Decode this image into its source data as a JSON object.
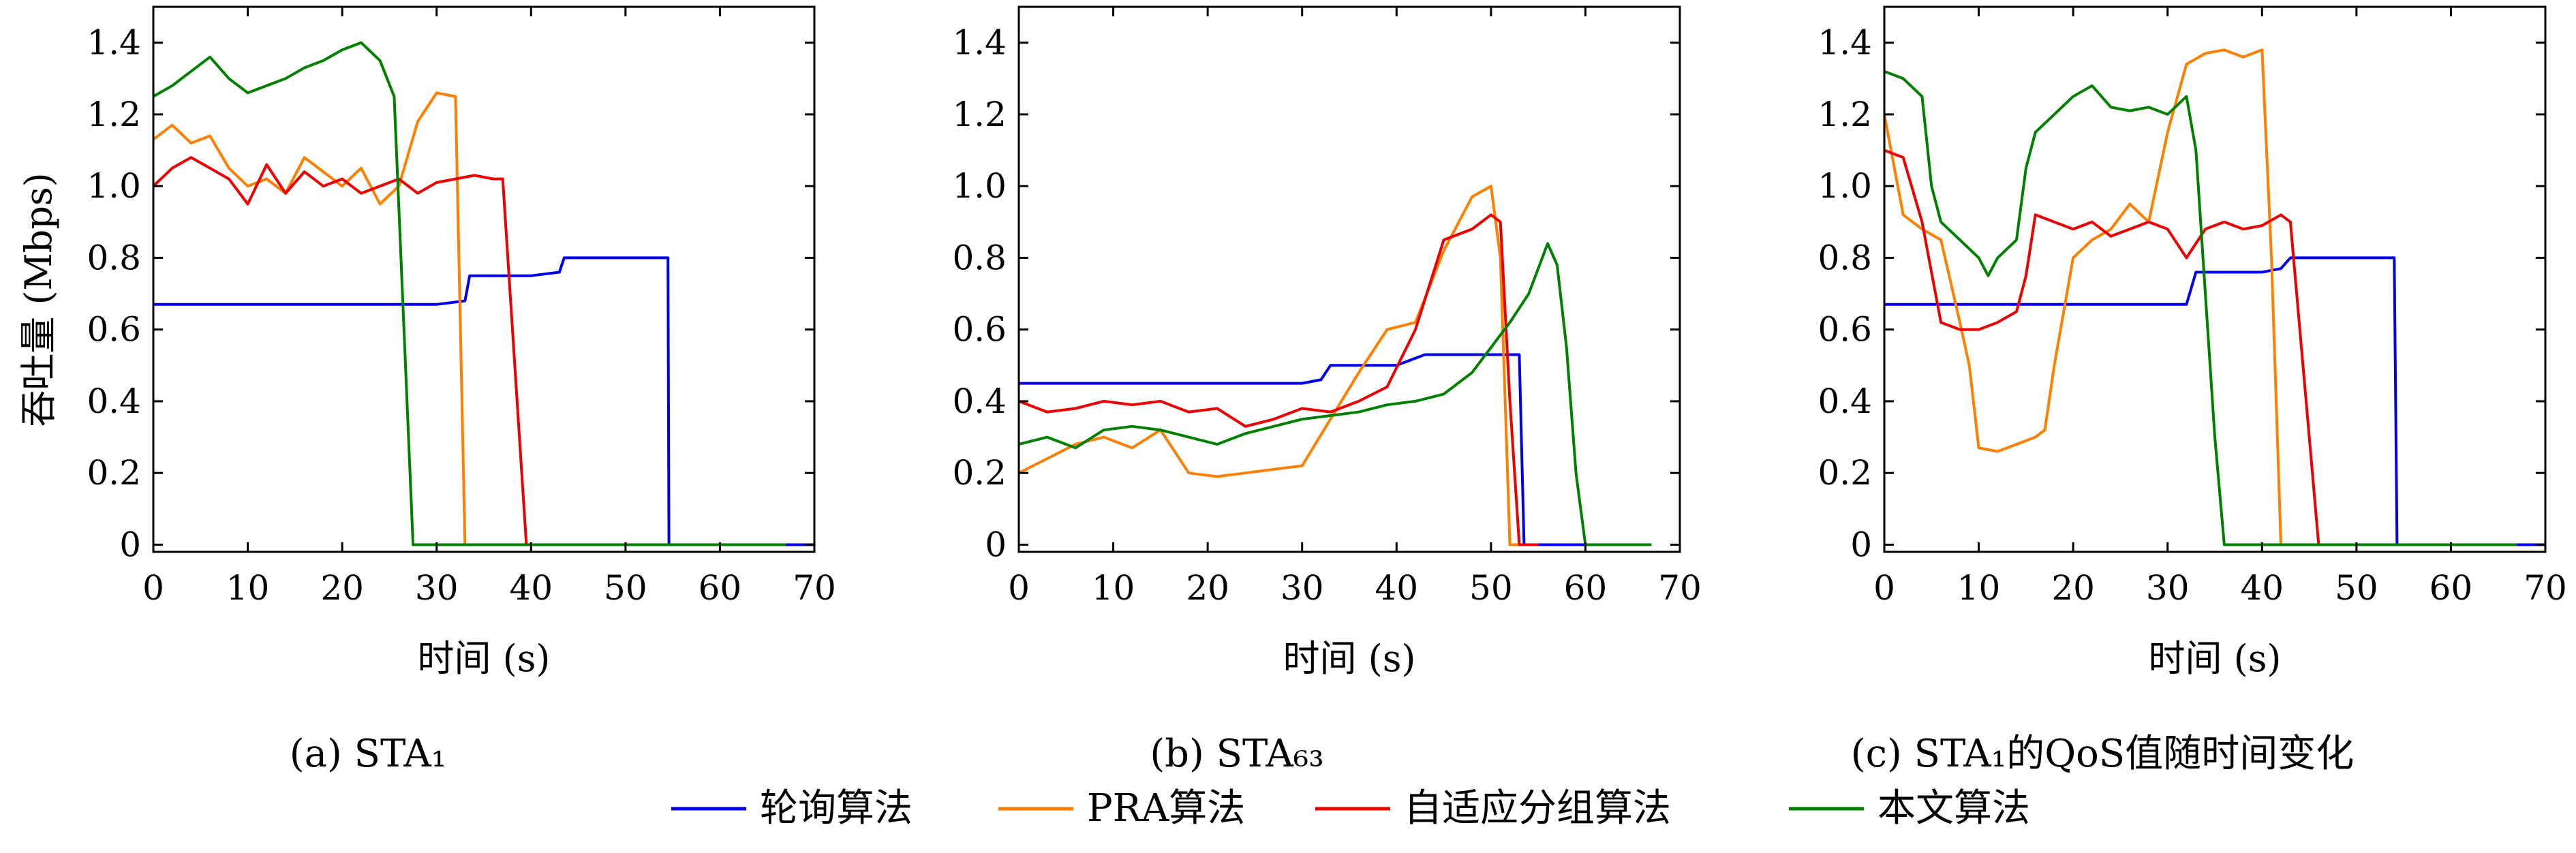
{
  "series_styles": [
    {
      "name": "轮询算法",
      "color": "#0000ee"
    },
    {
      "name": "PRA算法",
      "color": "#ff8000"
    },
    {
      "name": "自适应分组算法",
      "color": "#ee0000"
    },
    {
      "name": "本文算法",
      "color": "#008000"
    }
  ],
  "chart_data": [
    {
      "type": "line",
      "caption": "(a) STA₁",
      "xlabel": "时间 (s)",
      "ylabel": "吞吐量 (Mbps)",
      "xlim": [
        0,
        70
      ],
      "ylim": [
        -0.02,
        1.5
      ],
      "xticks": [
        "0",
        "10",
        "20",
        "30",
        "40",
        "50",
        "60",
        "70"
      ],
      "yticks": [
        "0",
        "0.2",
        "0.4",
        "0.6",
        "0.8",
        "1.0",
        "1.2",
        "1.4"
      ],
      "grid": false,
      "series": [
        {
          "name": "轮询算法",
          "x": [
            0,
            5,
            10,
            15,
            20,
            25,
            30,
            33,
            33.5,
            35,
            40,
            43,
            43.5,
            45,
            50,
            54.5,
            54.6,
            56,
            70
          ],
          "y": [
            0.67,
            0.67,
            0.67,
            0.67,
            0.67,
            0.67,
            0.67,
            0.68,
            0.75,
            0.75,
            0.75,
            0.76,
            0.8,
            0.8,
            0.8,
            0.8,
            0.0,
            0.0,
            0.0
          ]
        },
        {
          "name": "PRA算法",
          "x": [
            0,
            2,
            4,
            6,
            8,
            10,
            12,
            14,
            16,
            18,
            20,
            22,
            24,
            26,
            28,
            30,
            32,
            33,
            34,
            40
          ],
          "y": [
            1.13,
            1.17,
            1.12,
            1.14,
            1.05,
            1.0,
            1.02,
            0.98,
            1.08,
            1.04,
            1.0,
            1.05,
            0.95,
            1.0,
            1.18,
            1.26,
            1.25,
            0.0,
            0.0,
            0.0
          ]
        },
        {
          "name": "自适应分组算法",
          "x": [
            0,
            2,
            4,
            6,
            8,
            10,
            12,
            14,
            16,
            18,
            20,
            22,
            24,
            26,
            28,
            30,
            32,
            34,
            36,
            37,
            39.5,
            40,
            55
          ],
          "y": [
            1.0,
            1.05,
            1.08,
            1.05,
            1.02,
            0.95,
            1.06,
            0.98,
            1.04,
            1.0,
            1.02,
            0.98,
            1.0,
            1.02,
            0.98,
            1.01,
            1.02,
            1.03,
            1.02,
            1.02,
            0.0,
            0.0,
            0.0
          ]
        },
        {
          "name": "本文算法",
          "x": [
            0,
            2,
            4,
            6,
            8,
            10,
            12,
            14,
            16,
            18,
            20,
            22,
            24,
            25.5,
            27.5,
            28,
            30,
            40,
            50,
            60,
            67
          ],
          "y": [
            1.25,
            1.28,
            1.32,
            1.36,
            1.3,
            1.26,
            1.28,
            1.3,
            1.33,
            1.35,
            1.38,
            1.4,
            1.35,
            1.25,
            0.0,
            0.0,
            0.0,
            0.0,
            0.0,
            0.0,
            0.0
          ]
        }
      ]
    },
    {
      "type": "line",
      "caption": "(b) STA₆₃",
      "xlabel": "时间 (s)",
      "ylabel": "",
      "xlim": [
        0,
        70
      ],
      "ylim": [
        -0.02,
        1.5
      ],
      "xticks": [
        "0",
        "10",
        "20",
        "30",
        "40",
        "50",
        "60",
        "70"
      ],
      "yticks": [
        "0",
        "0.2",
        "0.4",
        "0.6",
        "0.8",
        "1.0",
        "1.2",
        "1.4"
      ],
      "grid": false,
      "series": [
        {
          "name": "轮询算法",
          "x": [
            0,
            5,
            10,
            15,
            20,
            25,
            30,
            32,
            33,
            35,
            40,
            43,
            45,
            50,
            53,
            53.5,
            55,
            60
          ],
          "y": [
            0.45,
            0.45,
            0.45,
            0.45,
            0.45,
            0.45,
            0.45,
            0.46,
            0.5,
            0.5,
            0.5,
            0.53,
            0.53,
            0.53,
            0.53,
            0.0,
            0.0,
            0.0
          ]
        },
        {
          "name": "PRA算法",
          "x": [
            0,
            3,
            6,
            9,
            12,
            15,
            18,
            21,
            24,
            27,
            30,
            33,
            36,
            39,
            42,
            45,
            48,
            50,
            51,
            52,
            53,
            55
          ],
          "y": [
            0.2,
            0.24,
            0.28,
            0.3,
            0.27,
            0.32,
            0.2,
            0.19,
            0.2,
            0.21,
            0.22,
            0.35,
            0.48,
            0.6,
            0.62,
            0.82,
            0.97,
            1.0,
            0.8,
            0.0,
            0.0,
            0.0
          ]
        },
        {
          "name": "自适应分组算法",
          "x": [
            0,
            3,
            6,
            9,
            12,
            15,
            18,
            21,
            24,
            27,
            30,
            33,
            36,
            39,
            42,
            45,
            48,
            50,
            51,
            52,
            53,
            55
          ],
          "y": [
            0.4,
            0.37,
            0.38,
            0.4,
            0.39,
            0.4,
            0.37,
            0.38,
            0.33,
            0.35,
            0.38,
            0.37,
            0.4,
            0.44,
            0.6,
            0.85,
            0.88,
            0.92,
            0.9,
            0.4,
            0.0,
            0.0
          ]
        },
        {
          "name": "本文算法",
          "x": [
            0,
            3,
            6,
            9,
            12,
            15,
            18,
            21,
            24,
            27,
            30,
            33,
            36,
            39,
            42,
            45,
            48,
            50,
            52,
            54,
            56,
            57,
            58,
            59,
            60,
            67
          ],
          "y": [
            0.28,
            0.3,
            0.27,
            0.32,
            0.33,
            0.32,
            0.3,
            0.28,
            0.31,
            0.33,
            0.35,
            0.36,
            0.37,
            0.39,
            0.4,
            0.42,
            0.48,
            0.55,
            0.62,
            0.7,
            0.84,
            0.78,
            0.55,
            0.2,
            0.0,
            0.0
          ]
        }
      ]
    },
    {
      "type": "line",
      "caption": "(c) STA₁的QoS值随时间变化",
      "xlabel": "时间 (s)",
      "ylabel": "",
      "xlim": [
        0,
        70
      ],
      "ylim": [
        -0.02,
        1.5
      ],
      "xticks": [
        "0",
        "10",
        "20",
        "30",
        "40",
        "50",
        "60",
        "70"
      ],
      "yticks": [
        "0",
        "0.2",
        "0.4",
        "0.6",
        "0.8",
        "1.0",
        "1.2",
        "1.4"
      ],
      "grid": false,
      "series": [
        {
          "name": "轮询算法",
          "x": [
            0,
            5,
            10,
            15,
            20,
            25,
            30,
            32,
            33,
            35,
            40,
            42,
            43,
            45,
            50,
            54,
            54.3,
            56,
            70
          ],
          "y": [
            0.67,
            0.67,
            0.67,
            0.67,
            0.67,
            0.67,
            0.67,
            0.67,
            0.76,
            0.76,
            0.76,
            0.77,
            0.8,
            0.8,
            0.8,
            0.8,
            0.0,
            0.0,
            0.0
          ]
        },
        {
          "name": "PRA算法",
          "x": [
            0,
            2,
            4,
            6,
            8,
            9,
            10,
            12,
            14,
            16,
            17,
            18,
            20,
            22,
            24,
            26,
            28,
            30,
            32,
            34,
            36,
            38,
            40,
            41,
            42,
            43,
            44
          ],
          "y": [
            1.2,
            0.92,
            0.88,
            0.85,
            0.62,
            0.5,
            0.27,
            0.26,
            0.28,
            0.3,
            0.32,
            0.5,
            0.8,
            0.85,
            0.88,
            0.95,
            0.9,
            1.15,
            1.34,
            1.37,
            1.38,
            1.36,
            1.38,
            0.8,
            0.0,
            0.0,
            0.0
          ]
        },
        {
          "name": "自适应分组算法",
          "x": [
            0,
            2,
            4,
            6,
            8,
            10,
            12,
            14,
            15,
            16,
            18,
            20,
            22,
            24,
            26,
            28,
            30,
            32,
            34,
            36,
            38,
            40,
            42,
            43,
            45,
            46,
            50
          ],
          "y": [
            1.1,
            1.08,
            0.9,
            0.62,
            0.6,
            0.6,
            0.62,
            0.65,
            0.75,
            0.92,
            0.9,
            0.88,
            0.9,
            0.86,
            0.88,
            0.9,
            0.88,
            0.8,
            0.88,
            0.9,
            0.88,
            0.89,
            0.92,
            0.9,
            0.3,
            0.0,
            0.0
          ]
        },
        {
          "name": "本文算法",
          "x": [
            0,
            2,
            4,
            5,
            6,
            8,
            10,
            11,
            12,
            14,
            15,
            16,
            18,
            20,
            22,
            24,
            26,
            28,
            30,
            32,
            33,
            34,
            35,
            36,
            37,
            40,
            50,
            60,
            67
          ],
          "y": [
            1.32,
            1.3,
            1.25,
            1.0,
            0.9,
            0.85,
            0.8,
            0.75,
            0.8,
            0.85,
            1.05,
            1.15,
            1.2,
            1.25,
            1.28,
            1.22,
            1.21,
            1.22,
            1.2,
            1.25,
            1.1,
            0.7,
            0.3,
            0.0,
            0.0,
            0.0,
            0.0,
            0.0,
            0.0
          ]
        }
      ]
    }
  ],
  "legend": {
    "items": [
      "轮询算法",
      "PRA算法",
      "自适应分组算法",
      "本文算法"
    ]
  }
}
